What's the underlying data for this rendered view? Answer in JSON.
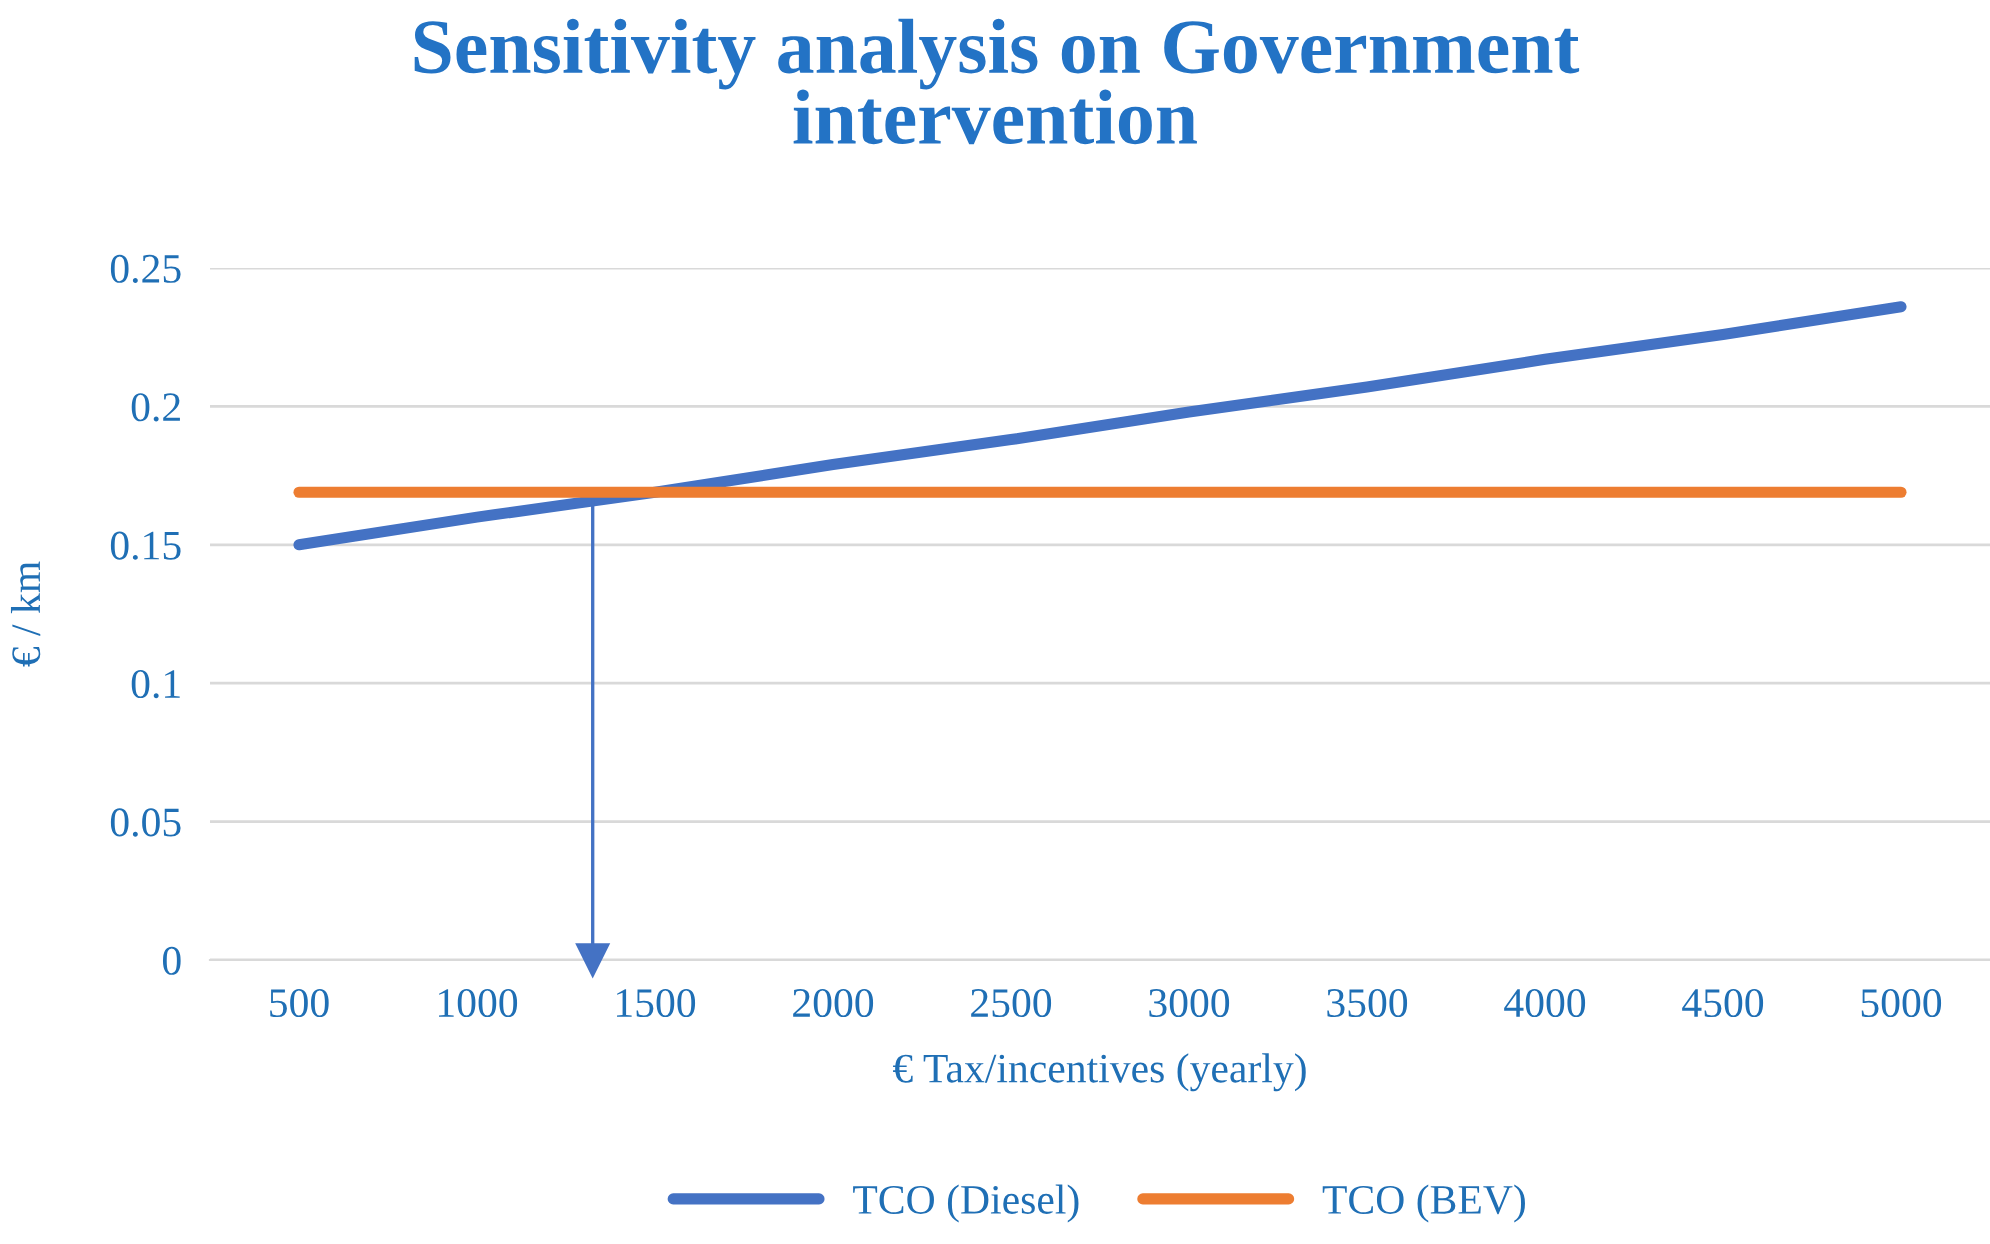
{
  "chart_data": {
    "type": "line",
    "title": "Sensitivity analysis on Government intervention",
    "xlabel": "€ Tax/incentives (yearly)",
    "ylabel": "€ / km",
    "x": [
      500,
      1000,
      1500,
      2000,
      2500,
      3000,
      3500,
      4000,
      4500,
      5000
    ],
    "series": [
      {
        "name": "TCO (Diesel)",
        "color": "#4472c4",
        "values": [
          0.15,
          0.16,
          0.169,
          0.179,
          0.188,
          0.198,
          0.207,
          0.217,
          0.226,
          0.236
        ]
      },
      {
        "name": "TCO (BEV)",
        "color": "#ed7d31",
        "values": [
          0.169,
          0.169,
          0.169,
          0.169,
          0.169,
          0.169,
          0.169,
          0.169,
          0.169,
          0.169
        ]
      }
    ],
    "xlim": [
      250,
      5250
    ],
    "xticks": [
      500,
      1000,
      1500,
      2000,
      2500,
      3000,
      3500,
      4000,
      4500,
      5000
    ],
    "ylim": [
      0,
      0.25
    ],
    "yticks": [
      0,
      0.05,
      0.1,
      0.15,
      0.2,
      0.25
    ],
    "ref_lines": [
      {
        "axis": "x",
        "value": 1325,
        "color": "#4472c4",
        "line_style": "solid"
      }
    ],
    "grid": "y",
    "legend": "bottom",
    "line_style": "solid",
    "marker": "none"
  }
}
